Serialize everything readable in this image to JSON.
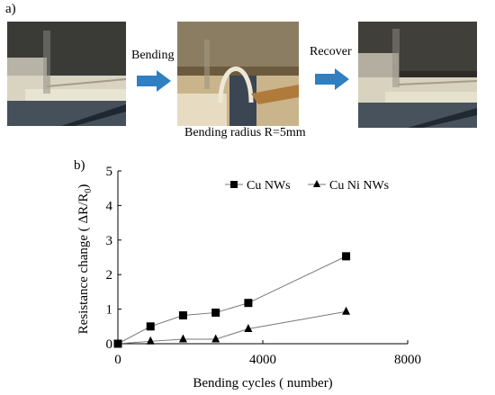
{
  "panel_a": {
    "label": "a)",
    "step1_label": "Bending",
    "step2_label": "Recover",
    "caption": "Bending radius R=5mm",
    "arrow_color": "#2f7fc1"
  },
  "panel_b": {
    "label": "b)"
  },
  "chart_data": {
    "type": "line",
    "xlabel": "Bending cycles ( number)",
    "ylabel_main": "Resistance change  ( ΔR/R",
    "ylabel_sub": "0",
    "ylabel_tail": ")",
    "xlim": [
      0,
      8000
    ],
    "ylim": [
      0,
      5
    ],
    "x_ticks": [
      0,
      4000,
      8000
    ],
    "y_ticks": [
      0,
      1,
      2,
      3,
      4,
      5
    ],
    "grid": false,
    "legend_position": "top-right",
    "series": [
      {
        "name": "Cu NWs",
        "marker": "square",
        "x": [
          0,
          900,
          1800,
          2700,
          3600,
          6300
        ],
        "y": [
          0,
          0.5,
          0.82,
          0.9,
          1.18,
          2.53
        ]
      },
      {
        "name": "Cu Ni NWs",
        "marker": "triangle",
        "x": [
          0,
          900,
          1800,
          2700,
          3600,
          6300
        ],
        "y": [
          0,
          0.07,
          0.13,
          0.13,
          0.43,
          0.93
        ]
      }
    ]
  }
}
